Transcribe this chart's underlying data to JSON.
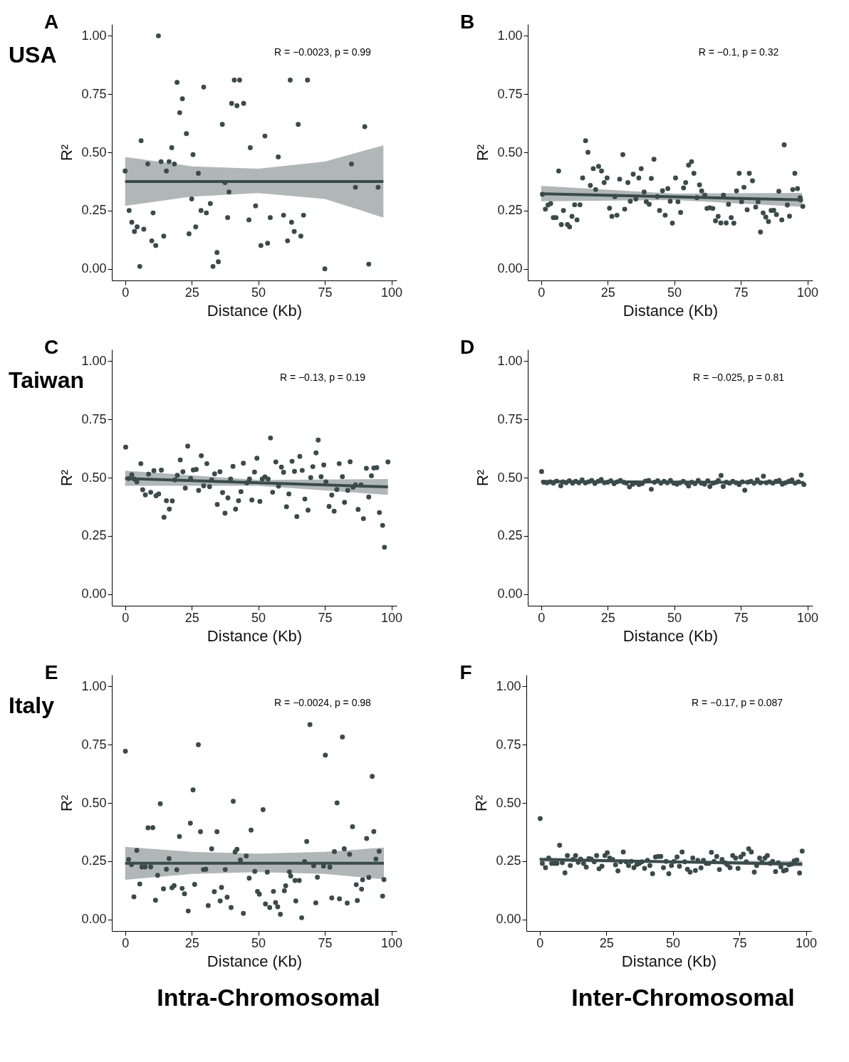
{
  "chart_data": [
    {
      "type": "scatter",
      "title": "A",
      "subtitle": "USA",
      "xlabel": "Distance (Kb)",
      "ylabel": "R²",
      "marker": "circle",
      "xlim": [
        -5,
        102
      ],
      "ylim": [
        -0.05,
        1.05
      ],
      "xticks": [
        0,
        25,
        50,
        75,
        100
      ],
      "yticks": [
        {
          "value": 0,
          "label": "0.00"
        },
        {
          "value": 0.25,
          "label": "0.25"
        },
        {
          "value": 0.5,
          "label": "0.50"
        },
        {
          "value": 0.75,
          "label": "0.75"
        },
        {
          "value": 1,
          "label": "1.00"
        }
      ],
      "annotations": [
        "R = −0.0023, p = 0.99"
      ],
      "series": [
        {
          "type": "scatter",
          "color": "#3b4a4a",
          "x": [
            0,
            1.5,
            2.5,
            3.5,
            4.5,
            5.5,
            6,
            7,
            8.5,
            10,
            10.5,
            11.5,
            12.5,
            13.5,
            14.5,
            15.5,
            16.5,
            17.5,
            18.5,
            19.5,
            20.5,
            21.5,
            23,
            24,
            25,
            25.5,
            26.5,
            27.5,
            28.5,
            29.5,
            30.5,
            32,
            33,
            34.5,
            35,
            36.5,
            37.5,
            38.5,
            39,
            40,
            41,
            42,
            43,
            44.5,
            46.5,
            47,
            49,
            51,
            52.5,
            53.5,
            54.5,
            57.5,
            59.5,
            61,
            62,
            62.5,
            63.5,
            65,
            66,
            67,
            68.5,
            75,
            85,
            86.5,
            90,
            91.5,
            95
          ],
          "values": [
            0.42,
            0.25,
            0.2,
            0.16,
            0.18,
            0.01,
            0.55,
            0.17,
            0.45,
            0.12,
            0.24,
            0.1,
            1.0,
            0.46,
            0.14,
            0.42,
            0.46,
            0.52,
            0.45,
            0.8,
            0.67,
            0.73,
            0.58,
            0.15,
            0.3,
            0.49,
            0.18,
            0.41,
            0.25,
            0.78,
            0.24,
            0.28,
            0.01,
            0.07,
            0.03,
            0.62,
            0.37,
            0.22,
            0.33,
            0.71,
            0.81,
            0.7,
            0.81,
            0.71,
            0.21,
            0.52,
            0.27,
            0.1,
            0.57,
            0.11,
            0.22,
            0.48,
            0.23,
            0.12,
            0.81,
            0.2,
            0.16,
            0.62,
            0.14,
            0.23,
            0.81,
            0.0,
            0.45,
            0.35,
            0.61,
            0.02,
            0.35
          ]
        },
        {
          "type": "line",
          "marker": "none",
          "color": "#3b4a4a",
          "x": [
            0,
            25,
            50,
            75,
            97
          ],
          "values": [
            0.375,
            0.375,
            0.375,
            0.375,
            0.375
          ],
          "lower": [
            0.27,
            0.31,
            0.325,
            0.3,
            0.22
          ],
          "upper": [
            0.48,
            0.44,
            0.43,
            0.46,
            0.53
          ]
        }
      ]
    },
    {
      "type": "scatter",
      "title": "B",
      "xlabel": "Distance (Kb)",
      "ylabel": "R²",
      "marker": "circle",
      "xlim": [
        -5,
        102
      ],
      "ylim": [
        -0.05,
        1.05
      ],
      "xticks": [
        0,
        25,
        50,
        75,
        100
      ],
      "yticks": [
        {
          "value": 0,
          "label": "0.00"
        },
        {
          "value": 0.25,
          "label": "0.25"
        },
        {
          "value": 0.5,
          "label": "0.50"
        },
        {
          "value": 0.75,
          "label": "0.75"
        },
        {
          "value": 1,
          "label": "1.00"
        }
      ],
      "annotations": [
        "R = −0.1, p = 0.32"
      ],
      "series": [
        {
          "type": "scatter",
          "color": "#3b4a4a",
          "x": [
            0.5,
            1.6,
            2.6,
            3.6,
            4.6,
            5.6,
            6.6,
            7.6,
            8.4,
            9.9,
            10.7,
            11.6,
            12.6,
            13.5,
            14.6,
            15.6,
            16.7,
            17.6,
            18.5,
            19.6,
            20.5,
            21.6,
            22.7,
            23.7,
            24.8,
            25.7,
            26.6,
            27.7,
            28.5,
            29.5,
            30.7,
            31.4,
            32.6,
            33.5,
            34.6,
            35.6,
            36.7,
            37.6,
            38.7,
            39.5,
            40.6,
            41.4,
            42.4,
            43.6,
            44.5,
            45.6,
            46.6,
            47.6,
            48.5,
            49.3,
            50.5,
            51.4,
            52.4,
            53.5,
            54.3,
            55.4,
            56.5,
            57.4,
            58.5,
            59.5,
            60.3,
            61.5,
            62.3,
            63.3,
            64.5,
            65.5,
            66.5,
            67.5,
            68.5,
            69.5,
            70.4,
            71.4,
            72.4,
            73.4,
            74.4,
            75.3,
            76.2,
            77.4,
            78.2,
            79.4,
            80.6,
            81.5,
            82.4,
            83.4,
            84.4,
            85.4,
            86.4,
            87.4,
            88.4,
            89.3,
            90.4,
            91.3,
            92.5,
            93.3,
            94.5,
            95.3,
            96.3,
            97.3,
            97.5,
            98.3
          ],
          "values": [
            0.32,
            0.256,
            0.274,
            0.28,
            0.22,
            0.22,
            0.42,
            0.19,
            0.25,
            0.19,
            0.18,
            0.225,
            0.275,
            0.21,
            0.275,
            0.39,
            0.55,
            0.5,
            0.358,
            0.43,
            0.34,
            0.44,
            0.42,
            0.37,
            0.39,
            0.26,
            0.225,
            0.31,
            0.23,
            0.385,
            0.49,
            0.256,
            0.37,
            0.29,
            0.406,
            0.3,
            0.39,
            0.43,
            0.33,
            0.288,
            0.277,
            0.388,
            0.47,
            0.31,
            0.25,
            0.335,
            0.23,
            0.344,
            0.29,
            0.196,
            0.39,
            0.288,
            0.242,
            0.347,
            0.37,
            0.445,
            0.46,
            0.41,
            0.305,
            0.36,
            0.334,
            0.316,
            0.259,
            0.262,
            0.259,
            0.206,
            0.225,
            0.197,
            0.316,
            0.197,
            0.277,
            0.22,
            0.196,
            0.334,
            0.41,
            0.288,
            0.35,
            0.253,
            0.41,
            0.378,
            0.265,
            0.288,
            0.158,
            0.24,
            0.222,
            0.203,
            0.25,
            0.251,
            0.233,
            0.333,
            0.21,
            0.532,
            0.274,
            0.226,
            0.34,
            0.41,
            0.344,
            0.305,
            0.295,
            0.268
          ]
        },
        {
          "type": "line",
          "marker": "none",
          "color": "#3b4a4a",
          "x": [
            0,
            50,
            98
          ],
          "values": [
            0.322,
            0.309,
            0.296
          ],
          "lower": [
            0.29,
            0.295,
            0.266
          ],
          "upper": [
            0.356,
            0.323,
            0.326
          ]
        }
      ]
    },
    {
      "type": "scatter",
      "title": "C",
      "subtitle": "Taiwan",
      "xlabel": "Distance (Kb)",
      "ylabel": "R²",
      "marker": "circle",
      "xlim": [
        -5,
        102
      ],
      "ylim": [
        -0.05,
        1.05
      ],
      "xticks": [
        0,
        25,
        50,
        75,
        100
      ],
      "yticks": [
        {
          "value": 0,
          "label": "0.00"
        },
        {
          "value": 0.25,
          "label": "0.25"
        },
        {
          "value": 0.5,
          "label": "0.50"
        },
        {
          "value": 0.75,
          "label": "0.75"
        },
        {
          "value": 1,
          "label": "1.00"
        }
      ],
      "annotations": [
        "R = −0.13, p = 0.19"
      ],
      "series": [
        {
          "type": "scatter",
          "color": "#3b4a4a",
          "x": [
            0.2,
            1.3,
            2.5,
            3.4,
            4.4,
            5.9,
            6.6,
            7.6,
            8.8,
            9.6,
            10.8,
            11.6,
            12.6,
            13.6,
            14.6,
            15.5,
            16.6,
            17.7,
            18.7,
            19.6,
            20.7,
            21.7,
            22.6,
            23.5,
            24.6,
            25.6,
            26.7,
            27.6,
            28.6,
            29.5,
            30.7,
            31.7,
            32.5,
            33.6,
            34.6,
            35.6,
            36.6,
            37.5,
            38.6,
            39.6,
            40.5,
            41.5,
            42.6,
            43.5,
            44.4,
            45.7,
            46.7,
            47.6,
            48.6,
            49.5,
            50.6,
            51.5,
            52.5,
            53.7,
            54.6,
            55.4,
            56.6,
            57.6,
            58.7,
            59.5,
            60.6,
            61.5,
            62.7,
            63.6,
            64.5,
            65.6,
            66.5,
            67.5,
            68.7,
            69.7,
            70.5,
            71.7,
            72.5,
            73.6,
            74.6,
            75.4,
            76.6,
            77.6,
            78.5,
            79.5,
            80.4,
            81.6,
            82.4,
            83.6,
            84.5,
            85.6,
            86.5,
            87.5,
            88.6,
            89.5,
            90.6,
            91.5,
            92.5,
            93.4,
            94.5,
            95.5,
            96.7,
            97.4,
            98.7
          ],
          "values": [
            0.631,
            0.496,
            0.512,
            0.494,
            0.482,
            0.56,
            0.448,
            0.426,
            0.515,
            0.437,
            0.53,
            0.422,
            0.43,
            0.532,
            0.33,
            0.401,
            0.365,
            0.4,
            0.49,
            0.51,
            0.576,
            0.525,
            0.455,
            0.635,
            0.496,
            0.533,
            0.535,
            0.445,
            0.594,
            0.465,
            0.56,
            0.461,
            0.49,
            0.516,
            0.385,
            0.525,
            0.436,
            0.347,
            0.413,
            0.494,
            0.548,
            0.365,
            0.401,
            0.44,
            0.562,
            0.477,
            0.494,
            0.404,
            0.524,
            0.583,
            0.398,
            0.494,
            0.503,
            0.494,
            0.67,
            0.437,
            0.567,
            0.463,
            0.545,
            0.523,
            0.375,
            0.43,
            0.57,
            0.527,
            0.333,
            0.591,
            0.531,
            0.408,
            0.36,
            0.5,
            0.547,
            0.606,
            0.661,
            0.504,
            0.554,
            0.482,
            0.376,
            0.425,
            0.356,
            0.449,
            0.56,
            0.504,
            0.394,
            0.445,
            0.568,
            0.459,
            0.469,
            0.363,
            0.469,
            0.324,
            0.54,
            0.417,
            0.508,
            0.541,
            0.543,
            0.35,
            0.295,
            0.201,
            0.567
          ]
        },
        {
          "type": "line",
          "marker": "none",
          "color": "#3b4a4a",
          "x": [
            0,
            50,
            98.7
          ],
          "values": [
            0.496,
            0.478,
            0.46
          ],
          "lower": [
            0.465,
            0.465,
            0.426
          ],
          "upper": [
            0.53,
            0.49,
            0.494
          ]
        }
      ]
    },
    {
      "type": "scatter",
      "title": "D",
      "xlabel": "Distance (Kb)",
      "ylabel": "R²",
      "marker": "circle",
      "xlim": [
        -5,
        102
      ],
      "ylim": [
        -0.05,
        1.05
      ],
      "xticks": [
        0,
        25,
        50,
        75,
        100
      ],
      "yticks": [
        {
          "value": 0,
          "label": "0.00"
        },
        {
          "value": 0.25,
          "label": "0.25"
        },
        {
          "value": 0.5,
          "label": "0.50"
        },
        {
          "value": 0.75,
          "label": "0.75"
        },
        {
          "value": 1,
          "label": "1.00"
        }
      ],
      "annotations": [
        "R = −0.025, p = 0.81"
      ],
      "series": [
        {
          "type": "scatter",
          "color": "#3b4a4a",
          "x": [
            0.2,
            1,
            2.2,
            3.4,
            4.6,
            5.8,
            7.4,
            8.2,
            9.4,
            10.6,
            11.8,
            13,
            14.2,
            15.4,
            16.6,
            17.8,
            19,
            20.2,
            21.4,
            22.6,
            23.8,
            25,
            26.2,
            27.4,
            28.6,
            29.8,
            31,
            32,
            33.2,
            34.4,
            35.6,
            36.8,
            38,
            39.2,
            40.4,
            41.4,
            42.6,
            43.8,
            45,
            46.2,
            47.4,
            48.6,
            49.8,
            51,
            52.2,
            53.4,
            54.6,
            55.4,
            56.6,
            57.8,
            59,
            60.2,
            61.4,
            62.6,
            63.4,
            64.6,
            65.8,
            66.6,
            67.6,
            68.4,
            69.6,
            70.8,
            72,
            73.2,
            74.4,
            75.6,
            76.5,
            77.6,
            78.8,
            80,
            81.2,
            82.4,
            83.5,
            84.6,
            85.8,
            87,
            88.2,
            89.4,
            90.6,
            91.8,
            93,
            94.2,
            95.4,
            96.6,
            97.7,
            98.7
          ],
          "values": [
            0.526,
            0.48,
            0.478,
            0.482,
            0.476,
            0.485,
            0.465,
            0.482,
            0.478,
            0.486,
            0.476,
            0.484,
            0.478,
            0.49,
            0.477,
            0.482,
            0.488,
            0.475,
            0.484,
            0.492,
            0.478,
            0.48,
            0.486,
            0.474,
            0.482,
            0.488,
            0.48,
            0.476,
            0.46,
            0.472,
            0.478,
            0.47,
            0.475,
            0.485,
            0.488,
            0.45,
            0.48,
            0.486,
            0.476,
            0.484,
            0.478,
            0.488,
            0.476,
            0.472,
            0.478,
            0.484,
            0.476,
            0.464,
            0.48,
            0.474,
            0.488,
            0.476,
            0.472,
            0.486,
            0.462,
            0.476,
            0.48,
            0.488,
            0.509,
            0.462,
            0.48,
            0.476,
            0.484,
            0.478,
            0.47,
            0.482,
            0.446,
            0.48,
            0.484,
            0.476,
            0.49,
            0.478,
            0.506,
            0.478,
            0.482,
            0.476,
            0.484,
            0.488,
            0.472,
            0.478,
            0.484,
            0.49,
            0.476,
            0.482,
            0.511,
            0.47
          ]
        },
        {
          "type": "line",
          "marker": "none",
          "color": "#3b4a4a",
          "x": [
            0,
            50,
            98.7
          ],
          "values": [
            0.483,
            0.481,
            0.479
          ],
          "lower": [
            0.477,
            0.478,
            0.473
          ],
          "upper": [
            0.489,
            0.484,
            0.485
          ]
        }
      ]
    },
    {
      "type": "scatter",
      "title": "E",
      "subtitle": "Italy",
      "xlabel": "Distance (Kb)",
      "ylabel": "R²",
      "marker": "circle",
      "xlim": [
        -5,
        102
      ],
      "ylim": [
        -0.05,
        1.05
      ],
      "xticks": [
        0,
        25,
        50,
        75,
        100
      ],
      "yticks": [
        {
          "value": 0,
          "label": "0.00"
        },
        {
          "value": 0.25,
          "label": "0.25"
        },
        {
          "value": 0.5,
          "label": "0.50"
        },
        {
          "value": 0.75,
          "label": "0.75"
        },
        {
          "value": 1,
          "label": "1.00"
        }
      ],
      "annotations": [
        "R = −0.0024, p = 0.98",
        "Intra-Chromosomal"
      ],
      "series": [
        {
          "type": "scatter",
          "color": "#3b4a4a",
          "x": [
            0.1,
            1.3,
            2.4,
            3.3,
            4.4,
            5.5,
            6.3,
            7.5,
            8.6,
            9.6,
            10.4,
            11.4,
            12.2,
            13.2,
            14.4,
            15.5,
            16.5,
            17.6,
            18.4,
            19.4,
            20.4,
            21.4,
            22.3,
            23.7,
            24.5,
            25.5,
            26.1,
            27.5,
            28.3,
            29.4,
            30.3,
            31.2,
            32.5,
            33.5,
            34.5,
            35.7,
            36.2,
            37.6,
            38.3,
            39.8,
            40.6,
            41.3,
            42,
            43.3,
            44.4,
            45.5,
            46.6,
            47.3,
            48.7,
            49.7,
            50.4,
            51.8,
            52.7,
            53.4,
            54.3,
            55.7,
            56.5,
            57.3,
            58.3,
            59.8,
            60.3,
            61.7,
            62.2,
            63.8,
            64.1,
            65.4,
            66.3,
            67.4,
            68.2,
            69.4,
            70.8,
            71.6,
            72.2,
            74.5,
            75.2,
            76.9,
            77.6,
            78.6,
            79.6,
            80.5,
            81.6,
            82.3,
            83.4,
            84.3,
            85.4,
            86.8,
            87.2,
            88.8,
            89.2,
            90.7,
            91.5,
            92.8,
            93.4,
            94.2,
            95.4,
            96.7,
            97.2
          ],
          "values": [
            0.722,
            0.257,
            0.235,
            0.097,
            0.296,
            0.152,
            0.225,
            0.225,
            0.393,
            0.225,
            0.394,
            0.082,
            0.189,
            0.496,
            0.131,
            0.215,
            0.261,
            0.136,
            0.145,
            0.213,
            0.356,
            0.133,
            0.11,
            0.036,
            0.413,
            0.556,
            0.15,
            0.75,
            0.376,
            0.214,
            0.215,
            0.059,
            0.303,
            0.119,
            0.376,
            0.079,
            0.137,
            0.214,
            0.095,
            0.051,
            0.507,
            0.289,
            0.301,
            0.255,
            0.026,
            0.272,
            0.177,
            0.383,
            0.206,
            0.12,
            0.108,
            0.471,
            0.066,
            0.203,
            0.051,
            0.12,
            0.072,
            0.054,
            0.022,
            0.123,
            0.144,
            0.204,
            0.186,
            0.167,
            0.079,
            0.167,
            0.007,
            0.248,
            0.334,
            0.836,
            0.23,
            0.071,
            0.181,
            0.229,
            0.705,
            0.224,
            0.092,
            0.291,
            0.5,
            0.088,
            0.783,
            0.303,
            0.07,
            0.279,
            0.398,
            0.149,
            0.081,
            0.13,
            0.17,
            0.347,
            0.18,
            0.614,
            0.377,
            0.259,
            0.292,
            0.1,
            0.171
          ]
        },
        {
          "type": "line",
          "marker": "none",
          "color": "#3b4a4a",
          "x": [
            0,
            25,
            50,
            75,
            97.2
          ],
          "values": [
            0.241,
            0.241,
            0.241,
            0.241,
            0.241
          ],
          "lower": [
            0.17,
            0.195,
            0.203,
            0.195,
            0.172
          ],
          "upper": [
            0.311,
            0.29,
            0.282,
            0.29,
            0.308
          ]
        }
      ]
    },
    {
      "type": "scatter",
      "title": "F",
      "xlabel": "Distance (Kb)",
      "ylabel": "R²",
      "marker": "circle",
      "xlim": [
        -5,
        102
      ],
      "ylim": [
        -0.05,
        1.05
      ],
      "xticks": [
        0,
        25,
        50,
        75,
        100
      ],
      "yticks": [
        {
          "value": 0,
          "label": "0.00"
        },
        {
          "value": 0.25,
          "label": "0.25"
        },
        {
          "value": 0.5,
          "label": "0.50"
        },
        {
          "value": 0.75,
          "label": "0.75"
        },
        {
          "value": 1,
          "label": "1.00"
        }
      ],
      "annotations": [
        "R = −0.17, p = 0.087",
        "Inter-Chromosomal"
      ],
      "series": [
        {
          "type": "scatter",
          "color": "#3b4a4a",
          "x": [
            0.2,
            1,
            2.2,
            3.4,
            4.5,
            5.6,
            6.5,
            7.5,
            8.5,
            9.5,
            10.4,
            11.5,
            12.5,
            13.5,
            14.5,
            15.4,
            16.5,
            17.5,
            18.5,
            19.4,
            20.5,
            21.4,
            22.3,
            23.4,
            24.5,
            25.4,
            26.3,
            27.4,
            28.5,
            29.4,
            30.4,
            31.4,
            32.5,
            33.4,
            34.4,
            35.4,
            36.5,
            37.4,
            38.4,
            39.4,
            40.5,
            41.4,
            42.4,
            43.5,
            44.5,
            45.5,
            46.5,
            47.5,
            48.5,
            49.5,
            50.5,
            51.6,
            52.5,
            53.5,
            54.5,
            55.5,
            56.5,
            57.5,
            58.5,
            59.4,
            60.6,
            61.5,
            62.6,
            63.5,
            64.5,
            65.5,
            66.5,
            67.5,
            68.5,
            69.6,
            70.5,
            71.5,
            72.5,
            73.6,
            74.5,
            75.5,
            76.5,
            77.6,
            78.5,
            79.5,
            80.6,
            81.5,
            82.6,
            83.5,
            84.6,
            85.5,
            86.6,
            87.5,
            88.6,
            89.6,
            90.6,
            91.6,
            92.6,
            93.6,
            94.6,
            95.6,
            96.6,
            97.6,
            98.6
          ],
          "values": [
            0.433,
            0.24,
            0.222,
            0.263,
            0.24,
            0.24,
            0.24,
            0.318,
            0.243,
            0.2,
            0.274,
            0.231,
            0.257,
            0.274,
            0.245,
            0.259,
            0.24,
            0.224,
            0.261,
            0.259,
            0.247,
            0.274,
            0.217,
            0.228,
            0.274,
            0.286,
            0.263,
            0.257,
            0.234,
            0.208,
            0.247,
            0.289,
            0.247,
            0.231,
            0.249,
            0.222,
            0.236,
            0.24,
            0.247,
            0.219,
            0.253,
            0.231,
            0.196,
            0.268,
            0.27,
            0.27,
            0.222,
            0.249,
            0.196,
            0.231,
            0.249,
            0.268,
            0.228,
            0.289,
            0.247,
            0.215,
            0.203,
            0.263,
            0.21,
            0.253,
            0.221,
            0.253,
            0.24,
            0.24,
            0.288,
            0.249,
            0.27,
            0.214,
            0.257,
            0.243,
            0.234,
            0.222,
            0.274,
            0.263,
            0.219,
            0.268,
            0.28,
            0.247,
            0.303,
            0.289,
            0.203,
            0.231,
            0.263,
            0.245,
            0.263,
            0.274,
            0.24,
            0.249,
            0.205,
            0.243,
            0.226,
            0.208,
            0.212,
            0.234,
            0.237,
            0.251,
            0.255,
            0.199,
            0.293
          ]
        },
        {
          "type": "line",
          "marker": "none",
          "color": "#3b4a4a",
          "x": [
            0,
            50,
            98.6
          ],
          "values": [
            0.257,
            0.247,
            0.237
          ],
          "lower": [
            0.247,
            0.242,
            0.227
          ],
          "upper": [
            0.266,
            0.252,
            0.251
          ]
        }
      ]
    }
  ]
}
